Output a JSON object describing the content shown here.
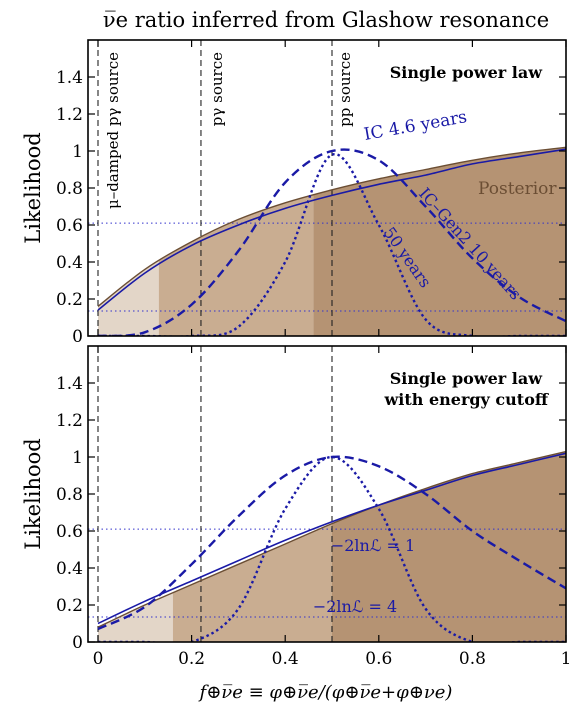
{
  "title": "ν̅e ratio inferred from Glashow resonance",
  "xlabel": "f⊕ν̅e ≡ φ⊕ν̅e/(φ⊕ν̅e+φ⊕νe)",
  "colors": {
    "posterior_outer": "#e3d6c8",
    "posterior_mid": "#c9ad91",
    "posterior_inner": "#b59373",
    "posterior_edge": "#6b4e34",
    "ic": "#1a1aa6",
    "reference_lines": "#3333cc"
  },
  "chart_data": [
    {
      "type": "area",
      "panel": "top",
      "annotation": "Single power law",
      "ylabel": "Likelihood",
      "xlim": [
        0,
        1
      ],
      "ylim": [
        0,
        1.6
      ],
      "xticks": [
        "0",
        "0.2",
        "0.4",
        "0.6",
        "0.8",
        "1"
      ],
      "yticks": [
        "0",
        "0.2",
        "0.4",
        "0.6",
        "0.8",
        "1",
        "1.2",
        "1.4"
      ],
      "x": [
        0,
        0.1,
        0.2,
        0.3,
        0.4,
        0.5,
        0.6,
        0.7,
        0.8,
        0.9,
        1.0
      ],
      "series": [
        {
          "name": "Posterior",
          "style": "filled",
          "values": [
            0.16,
            0.36,
            0.51,
            0.63,
            0.72,
            0.79,
            0.85,
            0.9,
            0.95,
            0.99,
            1.02
          ]
        },
        {
          "name": "IC 4.6 years",
          "style": "solid",
          "values": [
            0.14,
            0.34,
            0.49,
            0.6,
            0.69,
            0.76,
            0.82,
            0.87,
            0.93,
            0.97,
            1.01
          ]
        },
        {
          "name": "IC–Gen2 10 years",
          "style": "dashed",
          "values": [
            0.0,
            0.02,
            0.17,
            0.46,
            0.83,
            1.0,
            0.95,
            0.7,
            0.42,
            0.21,
            0.08
          ]
        },
        {
          "name": "50 years",
          "style": "dotted",
          "values": [
            0.0,
            0.0,
            0.0,
            0.05,
            0.4,
            0.98,
            0.6,
            0.09,
            0.0,
            0.0,
            0.0
          ]
        }
      ],
      "credible_region_bounds": [
        0.13,
        0.46
      ],
      "reference_levels": [
        0.61,
        0.135
      ],
      "vertical_lines": [
        {
          "label": "μ–damped pγ source",
          "x": 0.0
        },
        {
          "label": "pγ source",
          "x": 0.22
        },
        {
          "label": "pp source",
          "x": 0.5
        }
      ]
    },
    {
      "type": "area",
      "panel": "bottom",
      "annotation_lines": [
        "Single power law",
        "with energy cutoff"
      ],
      "ylabel": "Likelihood",
      "xlim": [
        0,
        1
      ],
      "ylim": [
        0,
        1.6
      ],
      "xticks": [
        "0",
        "0.2",
        "0.4",
        "0.6",
        "0.8",
        "1"
      ],
      "yticks": [
        "0",
        "0.2",
        "0.4",
        "0.6",
        "0.8",
        "1",
        "1.2",
        "1.4"
      ],
      "x": [
        0,
        0.1,
        0.2,
        0.3,
        0.4,
        0.5,
        0.6,
        0.7,
        0.8,
        0.9,
        1.0
      ],
      "series": [
        {
          "name": "Posterior",
          "style": "filled",
          "values": [
            0.08,
            0.2,
            0.31,
            0.42,
            0.53,
            0.64,
            0.74,
            0.83,
            0.91,
            0.97,
            1.03
          ]
        },
        {
          "name": "IC 4.6 years",
          "style": "solid",
          "values": [
            0.1,
            0.22,
            0.33,
            0.44,
            0.55,
            0.65,
            0.74,
            0.82,
            0.9,
            0.96,
            1.02
          ]
        },
        {
          "name": "IC–Gen2 10 years",
          "style": "dashed",
          "values": [
            0.07,
            0.19,
            0.42,
            0.68,
            0.9,
            1.0,
            0.95,
            0.8,
            0.6,
            0.44,
            0.29
          ]
        },
        {
          "name": "50 years",
          "style": "dotted",
          "values": [
            0.0,
            0.0,
            0.0,
            0.18,
            0.72,
            1.0,
            0.72,
            0.18,
            0.0,
            0.0,
            0.0
          ]
        }
      ],
      "credible_region_bounds": [
        0.16,
        0.5
      ],
      "reference_levels": [
        0.61,
        0.135
      ],
      "reference_labels": [
        "−2lnℒ = 1",
        "−2lnℒ = 4"
      ],
      "vertical_lines": [
        {
          "x": 0.0
        },
        {
          "x": 0.22
        },
        {
          "x": 0.5
        }
      ]
    }
  ]
}
